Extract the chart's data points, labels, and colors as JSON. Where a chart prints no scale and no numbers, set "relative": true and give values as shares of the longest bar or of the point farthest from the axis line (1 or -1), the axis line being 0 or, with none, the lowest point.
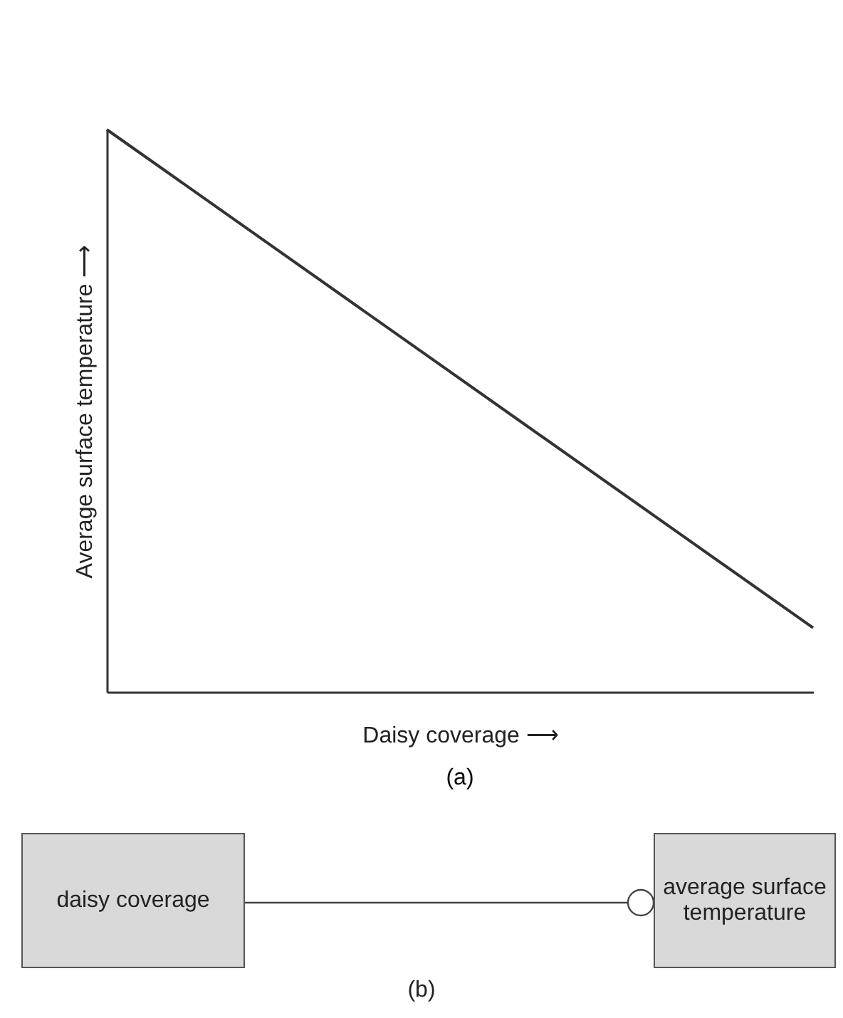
{
  "chart_data": [
    {
      "type": "line",
      "relative": true,
      "title": "(a)",
      "xlabel": "Daisy coverage ⟶",
      "ylabel": "Average surface temperature ⟶",
      "categories": [
        null,
        null
      ],
      "series": [
        {
          "color": "#333333",
          "values": [
            1,
            0.114
          ]
        }
      ],
      "grid": false,
      "legend": false,
      "marker": "none"
    },
    {
      "type": "other",
      "title": "(b)",
      "annotations": [
        "daisy coverage",
        "average surface temperature"
      ]
    }
  ]
}
